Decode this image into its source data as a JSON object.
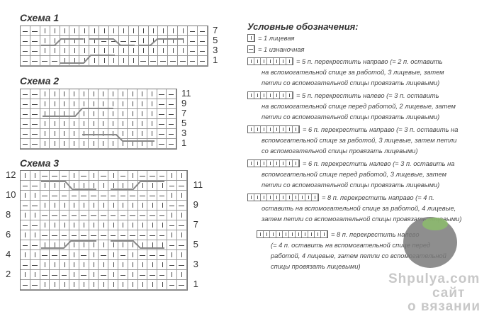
{
  "schemes": [
    {
      "title": "Схема 1",
      "rows": [
        "--|||||||||||||||--",
        "--||||||----|||||--",
        "--|||||||||||||||--",
        "----||||||||-------"
      ],
      "right_labels": [
        "7",
        "5",
        "3",
        "1"
      ],
      "left_labels": []
    },
    {
      "title": "Схема 2",
      "rows": [
        "--||||||||||||--",
        "--||||||||||||--",
        "--||||||||||||--",
        "--||||||||||||--",
        "--||||||||||||--",
        "--||||||||||||--"
      ],
      "right_labels": [
        "11",
        "9",
        "7",
        "5",
        "3",
        "1"
      ],
      "left_labels": []
    },
    {
      "title": "Схема 3",
      "rows": [
        "||---|-|-|-|---||",
        "--|||||||||||||--",
        "||-------------||",
        "--|||||||||||||--",
        "||-------------||",
        "--|||||||||||||--",
        "||-------------||",
        "--|||||||||||||--",
        "||---|-|-|-|---||",
        "--|||||||||||||--",
        "||---|-|-|-|---||",
        "--|||||||||||||--"
      ],
      "right_labels": [
        "11",
        "9",
        "7",
        "5",
        "3",
        "1"
      ],
      "left_labels": [
        "12",
        "10",
        "8",
        "6",
        "4",
        "2"
      ]
    }
  ],
  "legend": {
    "title": "Условные обозначения:",
    "items": [
      {
        "cells": 1,
        "type": "knit",
        "lines": [
          "= 1 лицевая"
        ]
      },
      {
        "cells": 1,
        "type": "purl",
        "lines": [
          "= 1 изнаночная"
        ]
      },
      {
        "cells": 7,
        "type": "knit",
        "lines": [
          "= 5 п. перекрестить направо (= 2 п. оставить",
          "на вспомогательной спице за работой, 3 лицевые, затем",
          "петли со вспомогательной спицы провязать лицевыми)"
        ]
      },
      {
        "cells": 7,
        "type": "knit",
        "lines": [
          "= 5 п. перекрестить налево (= 3 п. оставить",
          "на вспомогательной спице перед работой, 2 лицевые, затем",
          "петли со вспомогательной спицы провязать лицевыми)"
        ]
      },
      {
        "cells": 8,
        "type": "knit",
        "lines": [
          "= 6 п. перекрестить направо (= 3 п. оставить на",
          "вспомогательной спице за работой, 3 лицевые, затем петли",
          "со вспомогательной спицы провязать лицевыми)"
        ]
      },
      {
        "cells": 8,
        "type": "knit",
        "lines": [
          "= 6 п. перекрестить налево (= 3 п. оставить на",
          "вспомогательной спице перед работой, 3 лицевые, затем",
          "петли со вспомогательной спицы провязать лицевыми)"
        ]
      },
      {
        "cells": 11,
        "type": "knit",
        "lines": [
          "= 8 п. перекрестить направо (= 4 п.",
          "оставить на вспомогательной спице за работой, 4 лицевые,",
          "затем петли со вспомогательной спицы провязать лицевыми)"
        ]
      },
      {
        "cells": 11,
        "type": "knit",
        "lines": [
          "= 8 п. перекрестить налево",
          "(= 4 п. оставить на вспомогательной спице перед",
          "работой, 4 лицевые, затем петли со вспомогательной",
          "спицы провязать лицевыми)"
        ]
      }
    ]
  },
  "watermark": {
    "line1": "Shpulya.com",
    "line2": "сайт",
    "line3": "о вязании"
  }
}
